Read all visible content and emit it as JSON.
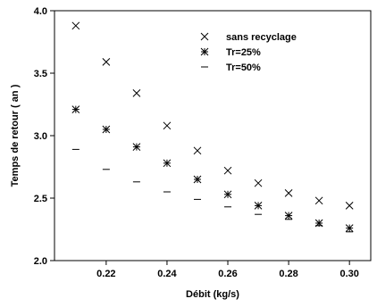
{
  "chart_data": {
    "type": "scatter",
    "xlabel": "Débit (kg/s)",
    "ylabel": "Temps de retour ( an )",
    "xlim": [
      0.203,
      0.307
    ],
    "ylim": [
      2.0,
      4.0
    ],
    "x_ticks": [
      0.22,
      0.24,
      0.26,
      0.28,
      0.3
    ],
    "x_tick_labels": [
      "0.22",
      "0.24",
      "0.26",
      "0.28",
      "0.30"
    ],
    "y_ticks": [
      2.0,
      2.5,
      3.0,
      3.5,
      4.0
    ],
    "y_tick_labels": [
      "2.0",
      "2.5",
      "3.0",
      "3.5",
      "4.0"
    ],
    "grid": false,
    "legend_position": "top-right",
    "x": [
      0.21,
      0.22,
      0.23,
      0.24,
      0.25,
      0.26,
      0.27,
      0.28,
      0.29,
      0.3
    ],
    "series": [
      {
        "name": "sans recyclage",
        "marker": "x",
        "values": [
          3.88,
          3.59,
          3.34,
          3.08,
          2.88,
          2.72,
          2.62,
          2.54,
          2.48,
          2.44
        ]
      },
      {
        "name": "Tr=25%",
        "marker": "asterisk",
        "values": [
          3.21,
          3.05,
          2.91,
          2.78,
          2.65,
          2.53,
          2.44,
          2.36,
          2.3,
          2.26
        ]
      },
      {
        "name": "Tr=50%",
        "marker": "dash",
        "values": [
          2.89,
          2.73,
          2.63,
          2.55,
          2.49,
          2.43,
          2.37,
          2.33,
          2.28,
          2.23
        ]
      }
    ]
  }
}
